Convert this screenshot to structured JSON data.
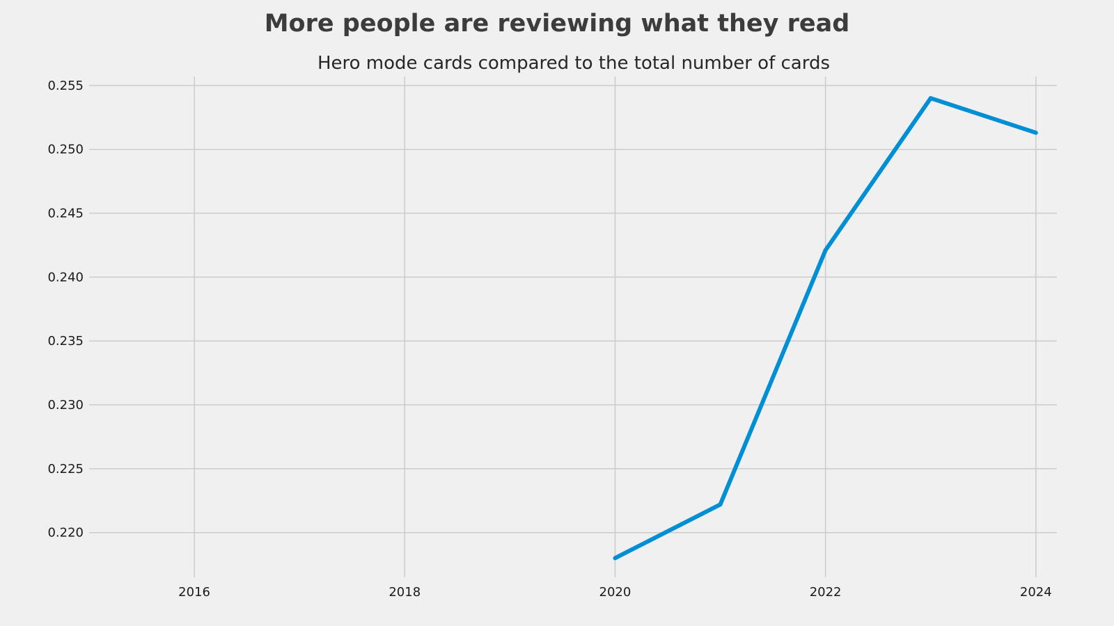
{
  "chart_data": {
    "type": "line",
    "title": "More people are reviewing what they read",
    "subtitle": "Hero mode cards compared to the total number of cards",
    "xlabel": "",
    "ylabel": "",
    "x": [
      2020,
      2021,
      2022,
      2023,
      2024
    ],
    "series": [
      {
        "values": [
          0.218,
          0.2222,
          0.2421,
          0.254,
          0.2513
        ],
        "color": "#008fd5"
      }
    ],
    "xlim": [
      2015.0,
      2024.2
    ],
    "ylim": [
      0.2165,
      0.2557
    ],
    "x_ticks": [
      2016,
      2018,
      2020,
      2022,
      2024
    ],
    "x_tick_labels": [
      "2016",
      "2018",
      "2020",
      "2022",
      "2024"
    ],
    "y_ticks": [
      0.22,
      0.225,
      0.23,
      0.235,
      0.24,
      0.245,
      0.25,
      0.255
    ],
    "y_tick_labels": [
      "0.220",
      "0.225",
      "0.230",
      "0.235",
      "0.240",
      "0.245",
      "0.250",
      "0.255"
    ],
    "grid": true,
    "legend": "none",
    "background_color": "#f0f0f0",
    "grid_color": "#cbcbcb"
  }
}
